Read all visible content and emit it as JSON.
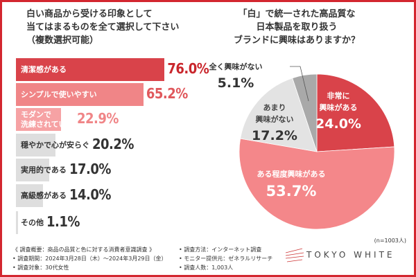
{
  "left_question": "白い商品から受ける印象として\n当てはまるものを全て選択して下さい\n（複数選択可能）",
  "right_question": "「白」で統一された高品質な\n日本製品を取り扱う\nブランドに興味はありますか？",
  "chart_data": [
    {
      "type": "bar",
      "orientation": "horizontal",
      "categories": [
        "清潔感がある",
        "シンプルで使いやすい",
        "モダンで\n洗練されている",
        "穏やかで心が安らぐ",
        "実用的である",
        "高級感がある",
        "その他"
      ],
      "values": [
        76.0,
        65.2,
        22.9,
        20.2,
        17.0,
        14.0,
        1.1
      ],
      "value_labels": [
        "76.0%",
        "65.2%",
        "22.9%",
        "20.2%",
        "17.0%",
        "14.0%",
        "1.1%"
      ],
      "colors": [
        "#d9434a",
        "#f08587",
        "#f6a2a4",
        "#dedede",
        "#dedede",
        "#dedede",
        "#dedede"
      ],
      "label_colors": [
        "#fff",
        "#fff",
        "#fff",
        "#333",
        "#333",
        "#333",
        "#333"
      ],
      "value_colors": [
        "#c9262c",
        "#e0585c",
        "#f08587",
        "#333",
        "#333",
        "#333",
        "#333"
      ]
    },
    {
      "type": "pie",
      "categories": [
        "非常に\n興味がある",
        "ある程度興味がある",
        "あまり\n興味がない",
        "全く興味がない"
      ],
      "values": [
        24.0,
        53.7,
        17.2,
        5.1
      ],
      "value_labels": [
        "24.0%",
        "53.7%",
        "17.2%",
        "5.1%"
      ],
      "colors": [
        "#d9434a",
        "#f4878a",
        "#e3e3e3",
        "#a9a9a9"
      ],
      "note": "(n=1003人)"
    }
  ],
  "footer": {
    "survey_title": "《 調査概要：商品の品質と色に対する消費者意識調査 》",
    "period": "• 調査期間：2024年3月28日（木）～2024年3月29日（金）",
    "target": "• 調査対象：30代女性",
    "method": "• 調査方法：インターネット調査",
    "provider": "• モニター提供元：ゼネラルリサーチ",
    "count": "• 調査人数：1,003人"
  },
  "logo": "TOKYO WHITE"
}
